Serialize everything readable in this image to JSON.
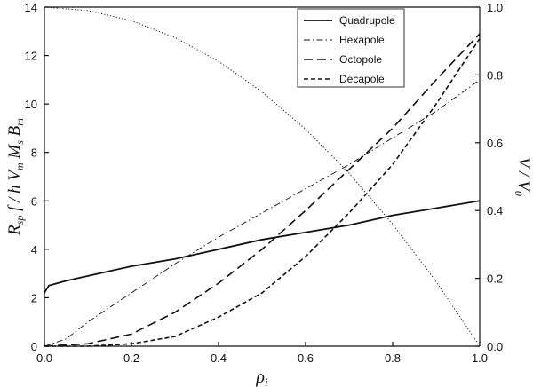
{
  "chart_data": {
    "type": "line",
    "title": "",
    "xlabel": "ρi",
    "ylabel_left": "Rsp f / h Vm Ms Bm",
    "ylabel_right": "V / V0",
    "xlim": [
      0,
      1
    ],
    "ylim_left": [
      0,
      14
    ],
    "ylim_right": [
      0,
      1
    ],
    "x_ticks": [
      "0.0",
      "0.2",
      "0.4",
      "0.6",
      "0.8",
      "1.0"
    ],
    "y_left_ticks": [
      "0",
      "2",
      "4",
      "6",
      "8",
      "10",
      "12",
      "14"
    ],
    "y_right_ticks": [
      "0.0",
      "0.2",
      "0.4",
      "0.6",
      "0.8",
      "1.0"
    ],
    "grid": false,
    "legend_position": "top-right",
    "series": [
      {
        "name": "Quadrupole",
        "axis": "left",
        "style": "solid",
        "x": [
          0,
          0.01,
          0.05,
          0.1,
          0.2,
          0.3,
          0.4,
          0.5,
          0.6,
          0.7,
          0.8,
          0.9,
          1.0
        ],
        "y": [
          2.2,
          2.5,
          2.7,
          2.9,
          3.3,
          3.6,
          4.0,
          4.4,
          4.7,
          5.0,
          5.4,
          5.7,
          6.0
        ]
      },
      {
        "name": "Hexapole",
        "axis": "left",
        "style": "dash-dot",
        "x": [
          0,
          0.05,
          0.1,
          0.2,
          0.3,
          0.4,
          0.5,
          0.6,
          0.7,
          0.8,
          0.9,
          1.0
        ],
        "y": [
          0,
          0.3,
          1.0,
          2.2,
          3.4,
          4.5,
          5.5,
          6.5,
          7.5,
          8.6,
          9.7,
          11.0
        ]
      },
      {
        "name": "Octopole",
        "axis": "left",
        "style": "long-dash",
        "x": [
          0,
          0.1,
          0.2,
          0.3,
          0.4,
          0.5,
          0.6,
          0.7,
          0.8,
          0.9,
          1.0
        ],
        "y": [
          0,
          0.1,
          0.5,
          1.4,
          2.6,
          4.0,
          5.6,
          7.3,
          9.0,
          11.0,
          12.9
        ]
      },
      {
        "name": "Decapole",
        "axis": "left",
        "style": "short-dash",
        "x": [
          0,
          0.1,
          0.2,
          0.3,
          0.4,
          0.5,
          0.6,
          0.7,
          0.8,
          0.9,
          1.0
        ],
        "y": [
          0,
          0,
          0.1,
          0.4,
          1.2,
          2.2,
          3.7,
          5.5,
          7.5,
          10.0,
          12.7
        ]
      },
      {
        "name": "",
        "axis": "right",
        "style": "dotted",
        "x": [
          0,
          0.1,
          0.2,
          0.3,
          0.4,
          0.5,
          0.6,
          0.7,
          0.8,
          0.9,
          1.0
        ],
        "y": [
          1.0,
          0.99,
          0.96,
          0.91,
          0.84,
          0.75,
          0.64,
          0.51,
          0.36,
          0.19,
          0.0
        ]
      }
    ]
  }
}
